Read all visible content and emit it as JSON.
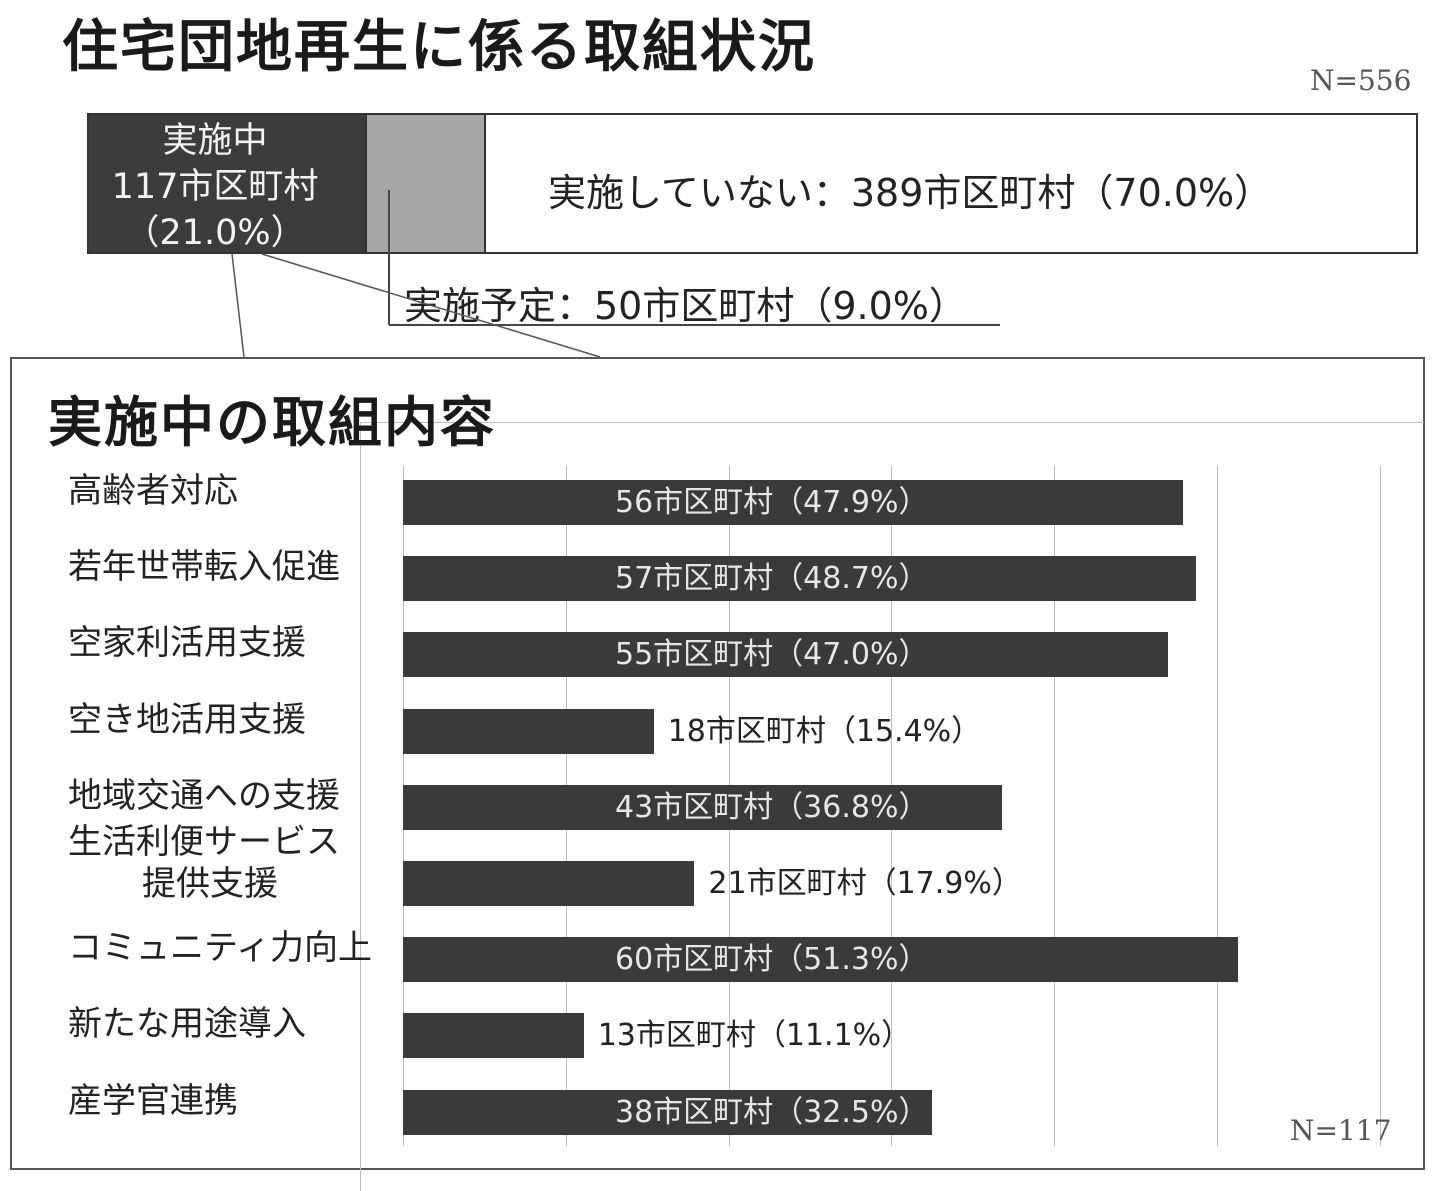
{
  "title": "住宅団地再生に係る取組状況",
  "top_n": "N=556",
  "status": {
    "active": {
      "line1": "実施中",
      "line2": "117市区町村",
      "line3": "（21.0%）",
      "count": 117,
      "percent": 21.0
    },
    "planned": {
      "label": "実施予定：50市区町村（9.0%）",
      "count": 50,
      "percent": 9.0
    },
    "not_active": {
      "label": "実施していない：389市区町村（70.0%）",
      "count": 389,
      "percent": 70.0
    }
  },
  "subtitle": "実施中の取組内容",
  "bottom_n": "N=117",
  "colors": {
    "dark": "#3a3a3a",
    "planned": "#a7a7a7",
    "empty": "#ffffff"
  },
  "chart_data": {
    "type": "bar",
    "orientation": "horizontal",
    "categories": [
      "高齢者対応",
      "若年世帯転入促進",
      "空家利活用支援",
      "空き地活用支援",
      "地域交通への支援",
      "生活利便サービス提供支援",
      "コミュニティ力向上",
      "新たな用途導入",
      "産学官連携"
    ],
    "category_lines": [
      [
        "高齢者対応"
      ],
      [
        "若年世帯転入促進"
      ],
      [
        "空家利活用支援"
      ],
      [
        "空き地活用支援"
      ],
      [
        "地域交通への支援"
      ],
      [
        "生活利便サービス",
        "提供支援"
      ],
      [
        "コミュニティ力向上"
      ],
      [
        "新たな用途導入"
      ],
      [
        "産学官連携"
      ]
    ],
    "values": [
      47.9,
      48.7,
      47.0,
      15.4,
      36.8,
      17.9,
      51.3,
      11.1,
      32.5
    ],
    "counts": [
      56,
      57,
      55,
      18,
      43,
      21,
      60,
      13,
      38
    ],
    "labels": [
      "56市区町村（47.9%）",
      "57市区町村（48.7%）",
      "55市区町村（47.0%）",
      "18市区町村（15.4%）",
      "43市区町村（36.8%）",
      "21市区町村（17.9%）",
      "60市区町村（51.3%）",
      "13市区町村（11.1%）",
      "38市区町村（32.5%）"
    ],
    "xlim": [
      0,
      60
    ],
    "grid": true
  }
}
